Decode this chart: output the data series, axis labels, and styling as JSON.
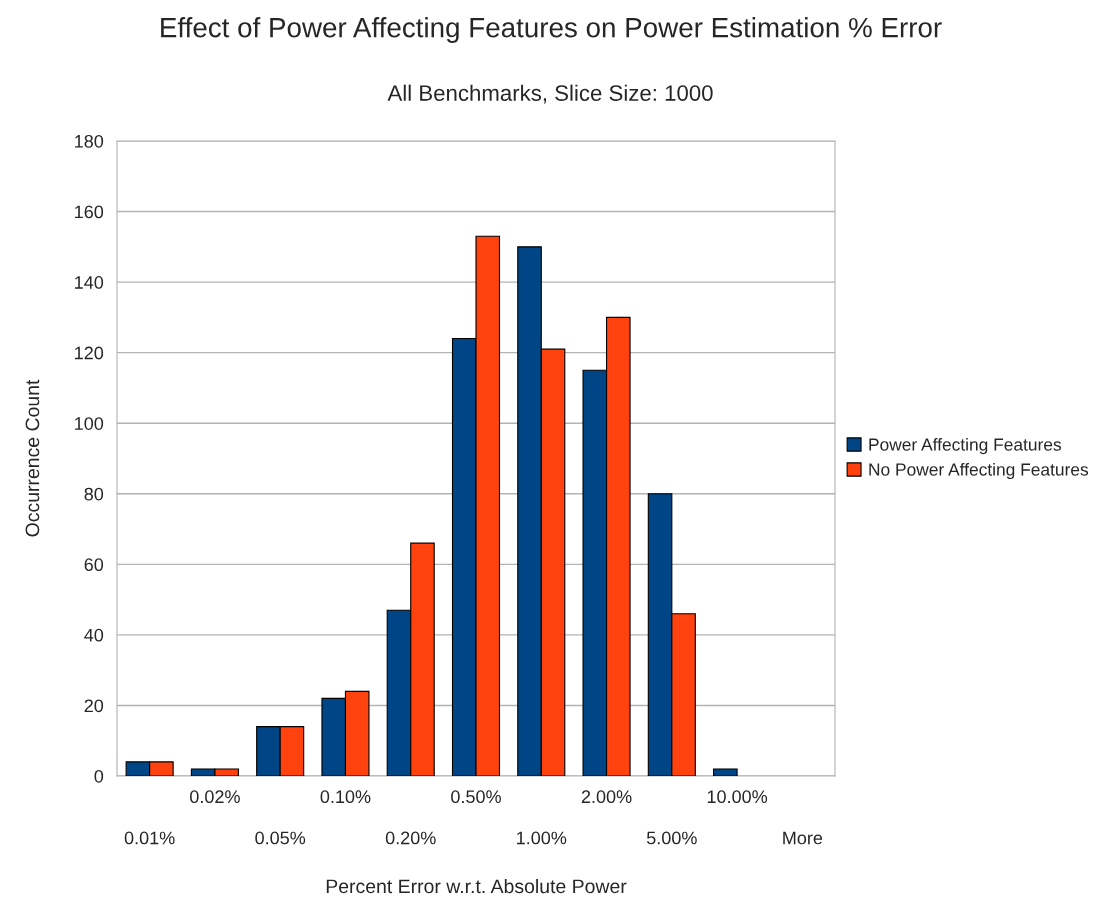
{
  "chart_data": {
    "type": "bar",
    "title": "Effect of Power Affecting Features on Power Estimation % Error",
    "subtitle": "All Benchmarks, Slice Size: 1000",
    "xlabel": "Percent Error w.r.t. Absolute Power",
    "ylabel": "Occurrence Count",
    "categories": [
      "0.01%",
      "0.02%",
      "0.05%",
      "0.10%",
      "0.20%",
      "0.50%",
      "1.00%",
      "2.00%",
      "5.00%",
      "10.00%",
      "More"
    ],
    "series": [
      {
        "name": "Power Affecting Features",
        "color": "#004586",
        "values": [
          4,
          2,
          14,
          22,
          47,
          124,
          150,
          115,
          80,
          2,
          null
        ]
      },
      {
        "name": "No Power Affecting Features",
        "color": "#ff420e",
        "values": [
          4,
          2,
          14,
          24,
          66,
          153,
          121,
          130,
          46,
          null,
          null
        ]
      }
    ],
    "ylim": [
      0,
      180
    ],
    "yticks": [
      0,
      20,
      40,
      60,
      80,
      100,
      120,
      140,
      160,
      180
    ],
    "grid": "y",
    "legend": "right"
  }
}
